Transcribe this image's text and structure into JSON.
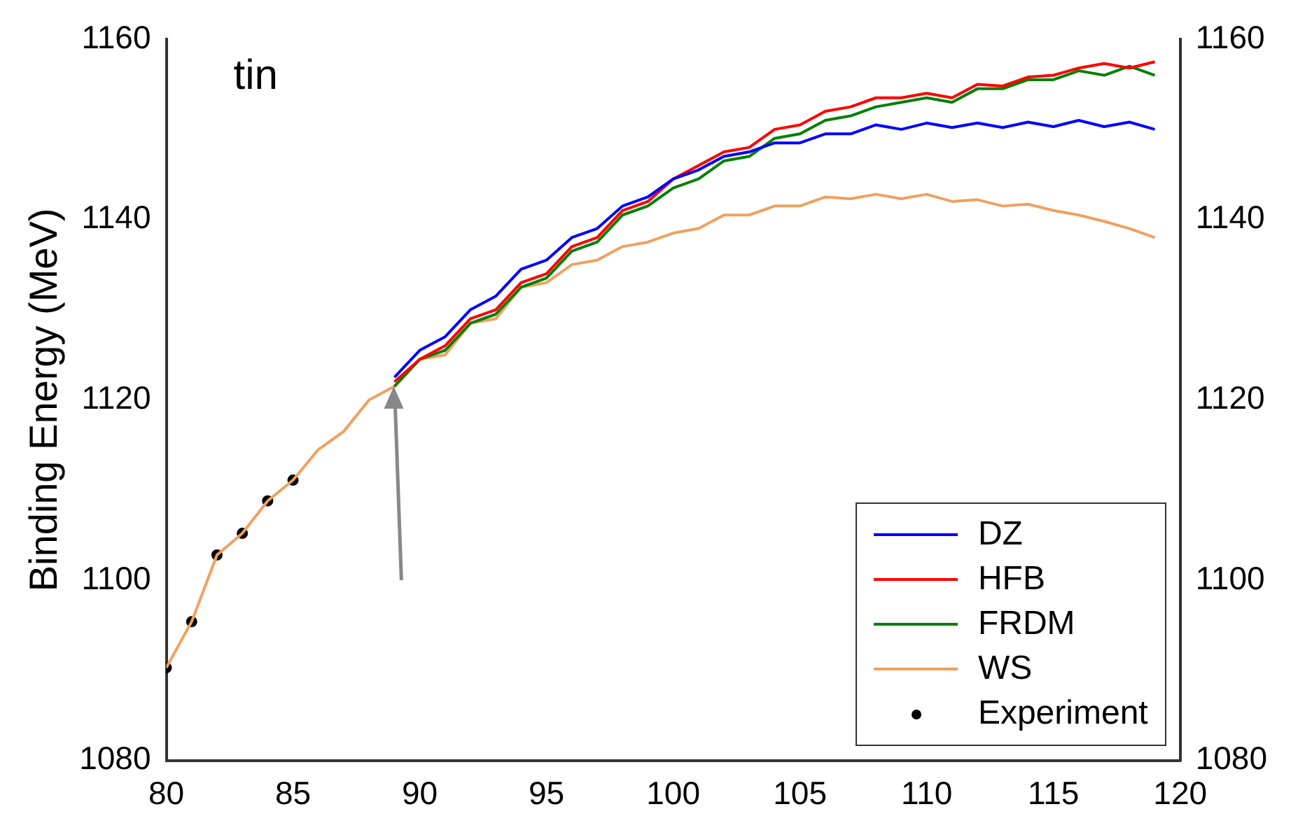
{
  "chart_data": {
    "type": "line",
    "ylabel": "Binding Energy (MeV)",
    "annotations": [
      "tin"
    ],
    "x": [
      80,
      81,
      82,
      83,
      84,
      85,
      86,
      87,
      88,
      89,
      90,
      91,
      92,
      93,
      94,
      95,
      96,
      97,
      98,
      99,
      100,
      101,
      102,
      103,
      104,
      105,
      106,
      107,
      108,
      109,
      110,
      111,
      112,
      113,
      114,
      115,
      116,
      117,
      118,
      119
    ],
    "series": [
      {
        "name": "DZ",
        "color": "#0000ff",
        "values": [
          null,
          null,
          null,
          null,
          null,
          null,
          null,
          null,
          null,
          1122.5,
          1125.5,
          1127,
          1130,
          1131.5,
          1134.5,
          1135.5,
          1138,
          1139,
          1141.5,
          1142.5,
          1144.5,
          1145.5,
          1147,
          1147.5,
          1148.5,
          1148.5,
          1149.5,
          1149.5,
          1150.5,
          1150,
          1150.7,
          1150.2,
          1150.7,
          1150.2,
          1150.8,
          1150.3,
          1151,
          1150.3,
          1150.8,
          1150
        ]
      },
      {
        "name": "HFB",
        "color": "#ff0000",
        "values": [
          null,
          null,
          null,
          null,
          null,
          null,
          null,
          null,
          null,
          1122,
          1124.5,
          1126,
          1129,
          1130,
          1133,
          1134,
          1137,
          1138,
          1141,
          1142,
          1144.5,
          1146,
          1147.5,
          1148,
          1150,
          1150.5,
          1152,
          1152.5,
          1153.5,
          1153.5,
          1154,
          1153.5,
          1155,
          1154.8,
          1155.8,
          1156,
          1156.8,
          1157.3,
          1156.8,
          1157.5
        ]
      },
      {
        "name": "FRDM",
        "color": "#008000",
        "values": [
          null,
          null,
          null,
          null,
          null,
          null,
          null,
          null,
          null,
          1121.5,
          1124.5,
          1125.5,
          1128.5,
          1129.5,
          1132.5,
          1133.5,
          1136.5,
          1137.5,
          1140.5,
          1141.5,
          1143.5,
          1144.5,
          1146.5,
          1147,
          1149,
          1149.5,
          1151,
          1151.5,
          1152.5,
          1153,
          1153.5,
          1153,
          1154.5,
          1154.5,
          1155.5,
          1155.5,
          1156.5,
          1156,
          1157,
          1156
        ]
      },
      {
        "name": "WS",
        "color": "#f0a060",
        "values": [
          1090.3,
          1095.4,
          1102.8,
          1105.2,
          1108.8,
          1111.1,
          1114.5,
          1116.5,
          1120,
          1121.5,
          1124.5,
          1125,
          1128.5,
          1129,
          1132.5,
          1133,
          1135,
          1135.5,
          1137,
          1137.5,
          1138.5,
          1139,
          1140.5,
          1140.5,
          1141.5,
          1141.5,
          1142.5,
          1142.3,
          1142.8,
          1142.3,
          1142.8,
          1142,
          1142.2,
          1141.5,
          1141.7,
          1141,
          1140.5,
          1139.8,
          1139,
          1138
        ]
      },
      {
        "name": "Experiment",
        "type": "scatter",
        "color": "#000000",
        "marker": "circle",
        "x": [
          80,
          81,
          82,
          83,
          84,
          85
        ],
        "values": [
          1090.3,
          1095.4,
          1102.8,
          1105.2,
          1108.8,
          1111.1
        ]
      }
    ],
    "xlim": [
      80,
      120
    ],
    "xticks": [
      80,
      85,
      90,
      95,
      100,
      105,
      110,
      115,
      120
    ],
    "ylim": [
      1080,
      1160
    ],
    "yticks": [
      1080,
      1100,
      1120,
      1140,
      1160
    ],
    "y2lim": [
      1080,
      1160
    ],
    "y2ticks": [
      1080,
      1100,
      1120,
      1140,
      1160
    ],
    "legend": "bottom right",
    "grid": false
  }
}
